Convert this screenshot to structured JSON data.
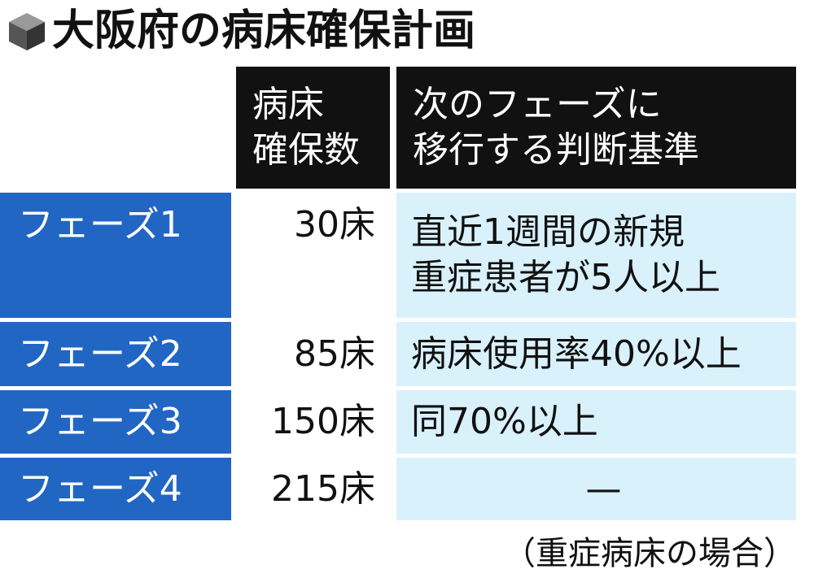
{
  "title": "大阪府の病床確保計画",
  "table": {
    "header": [
      [
        "病床",
        "確保数"
      ],
      [
        "次のフェーズに",
        "移行する判断基準"
      ]
    ],
    "rows": [
      {
        "phase": "フェーズ1",
        "beds": "30床",
        "criteria": [
          "直近1週間の新規",
          "重症患者が5人以上"
        ]
      },
      {
        "phase": "フェーズ2",
        "beds": "85床",
        "criteria": [
          "病床使用率40%以上"
        ]
      },
      {
        "phase": "フェーズ3",
        "beds": "150床",
        "criteria": [
          "同70%以上"
        ]
      },
      {
        "phase": "フェーズ4",
        "beds": "215床",
        "criteria": [
          "—"
        ]
      }
    ]
  },
  "note": "（重症病床の場合）"
}
